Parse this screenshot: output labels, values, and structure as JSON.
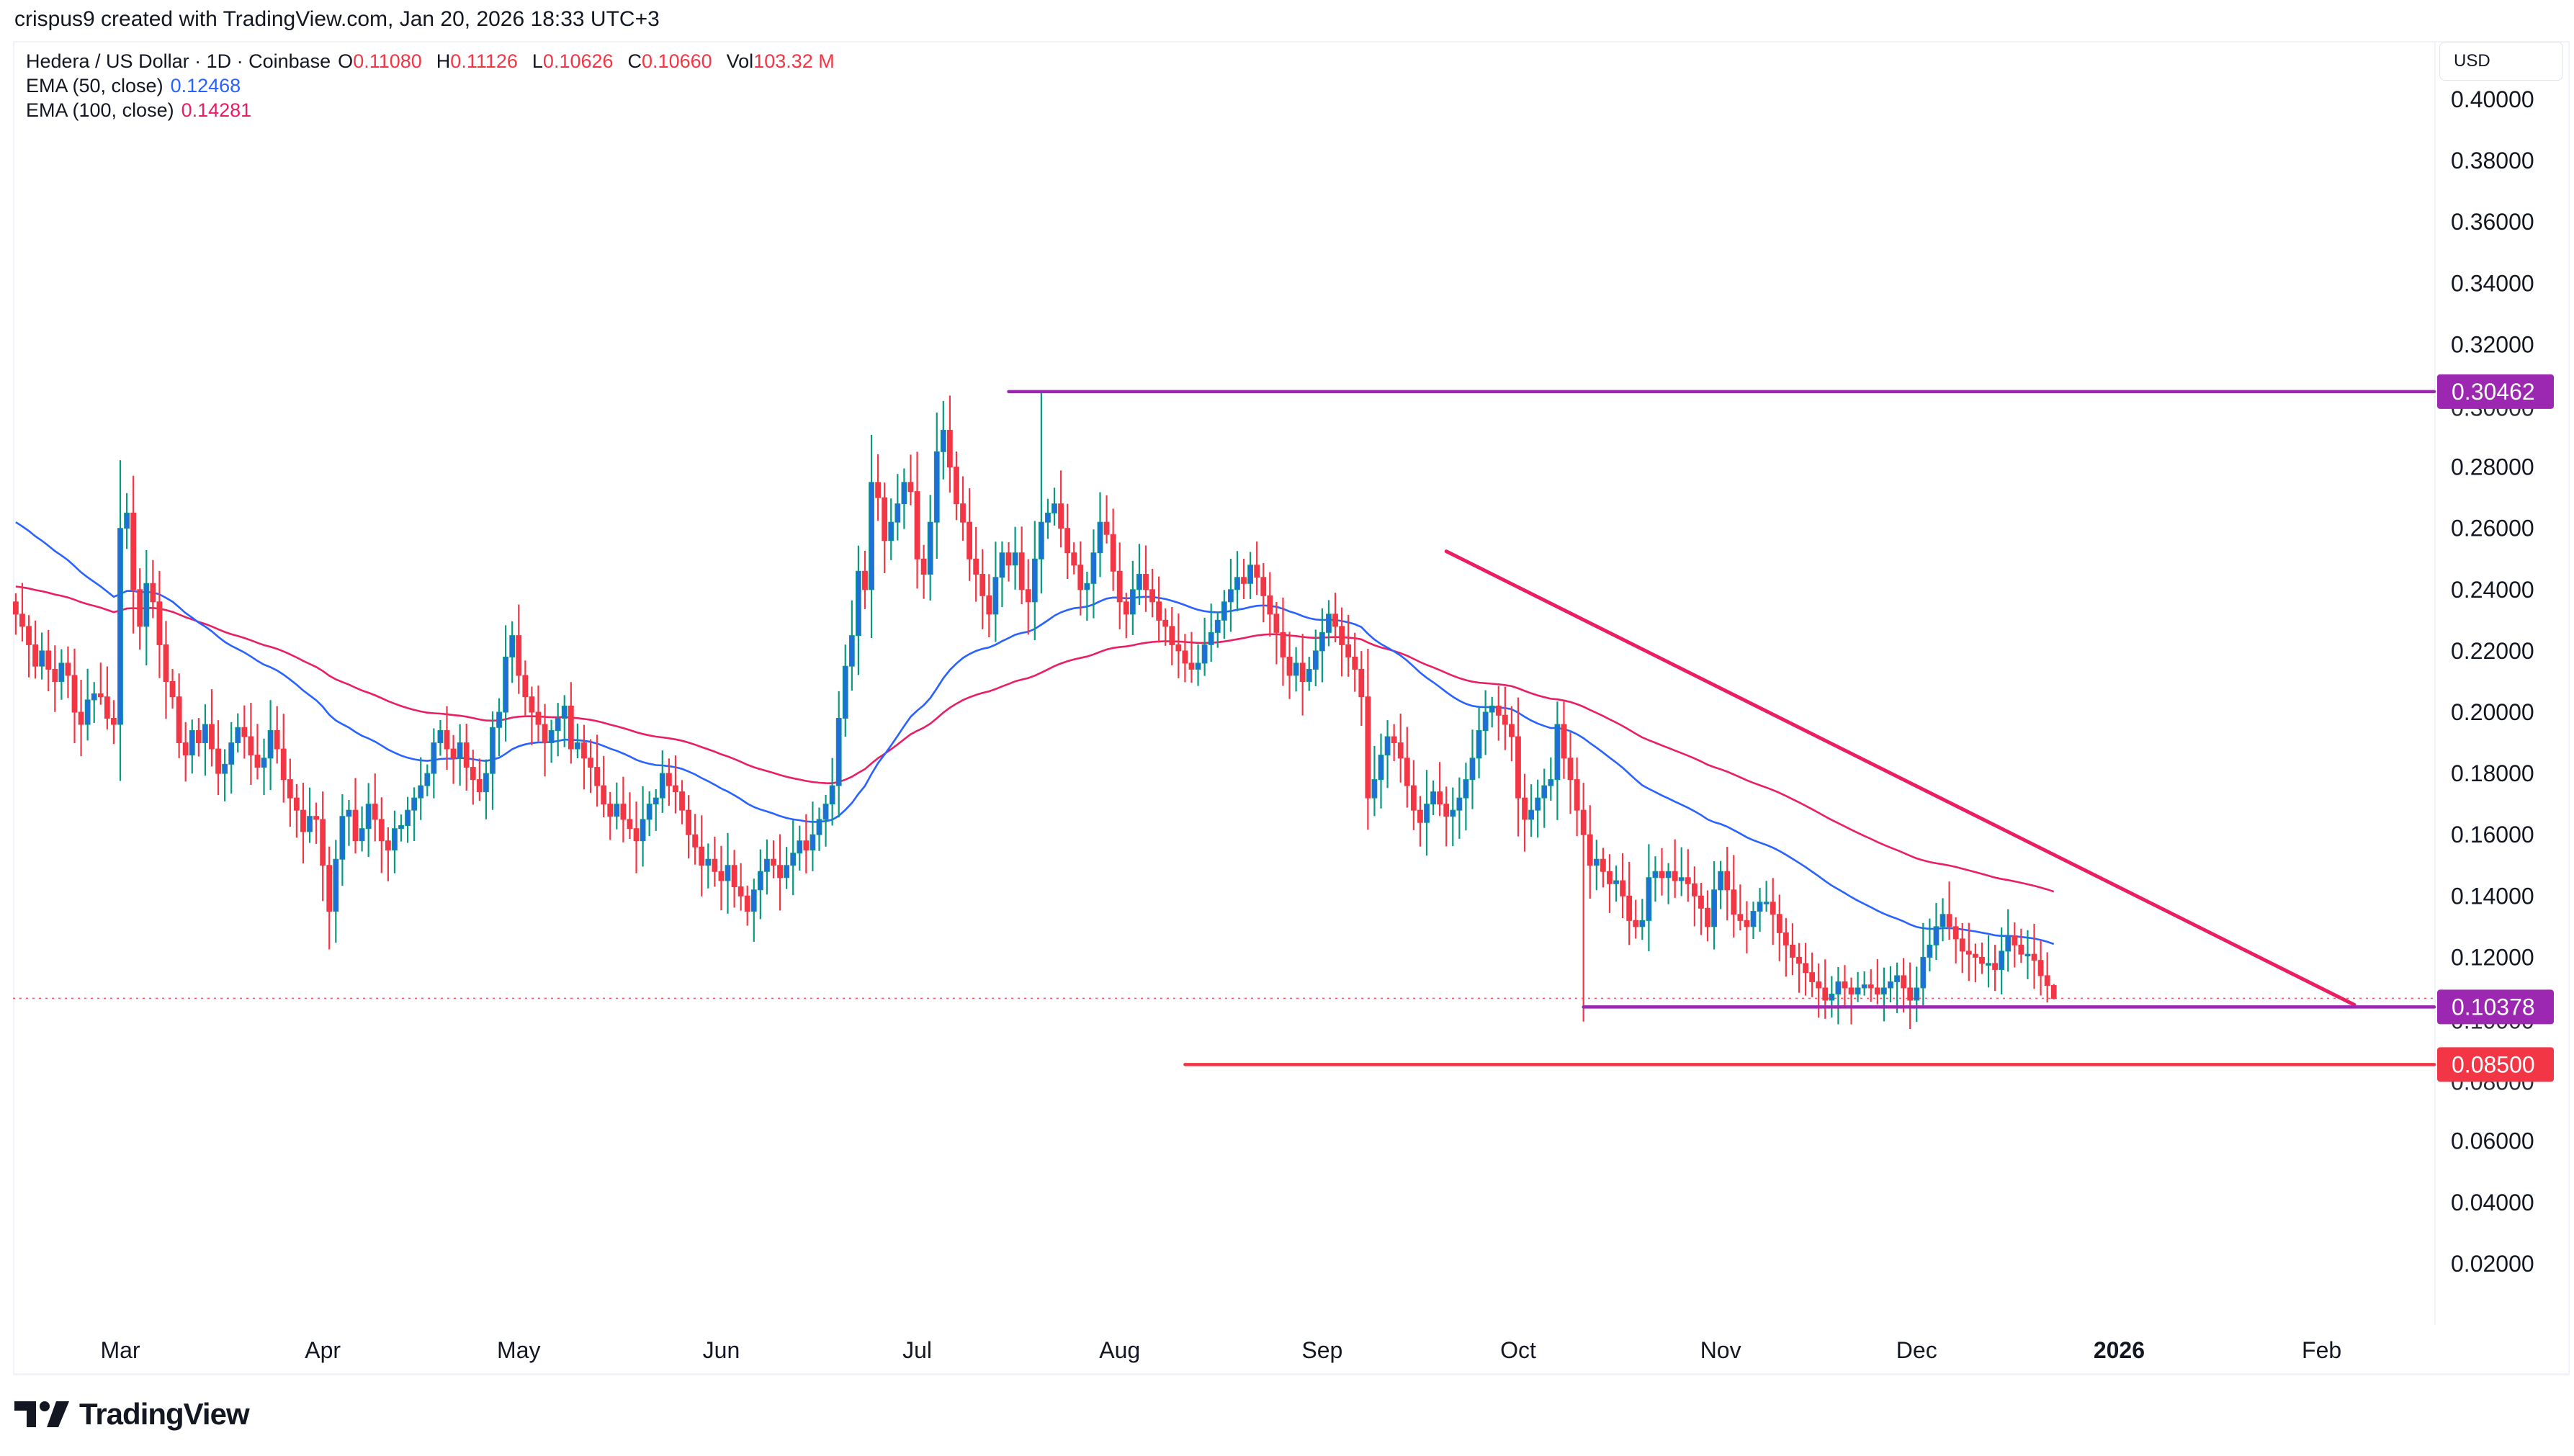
{
  "header": {
    "credit": "crispus9 created with TradingView.com, Jan 20, 2026 18:33 UTC+3"
  },
  "legend": {
    "symbol": "Hedera / US Dollar · 1D · Coinbase",
    "o_label": "O",
    "o": "0.11080",
    "h_label": "H",
    "h": "0.11126",
    "l_label": "L",
    "l": "0.10626",
    "c_label": "C",
    "c": "0.10660",
    "vol_label": "Vol",
    "vol": "103.32 M",
    "ema50_label": "EMA (50, close)",
    "ema50": "0.12468",
    "ema100_label": "EMA (100, close)",
    "ema100": "0.14281"
  },
  "price_axis": {
    "currency": "USD",
    "ticks": [
      "0.40000",
      "0.38000",
      "0.36000",
      "0.34000",
      "0.32000",
      "0.30000",
      "0.28000",
      "0.26000",
      "0.24000",
      "0.22000",
      "0.20000",
      "0.18000",
      "0.16000",
      "0.14000",
      "0.12000",
      "0.10000",
      "0.08000",
      "0.06000",
      "0.04000",
      "0.02000"
    ]
  },
  "time_axis": {
    "labels": [
      {
        "text": "Mar",
        "day": 0,
        "bold": false
      },
      {
        "text": "Apr",
        "day": 31,
        "bold": false
      },
      {
        "text": "May",
        "day": 61,
        "bold": false
      },
      {
        "text": "Jun",
        "day": 92,
        "bold": false
      },
      {
        "text": "Jul",
        "day": 122,
        "bold": false
      },
      {
        "text": "Aug",
        "day": 153,
        "bold": false
      },
      {
        "text": "Sep",
        "day": 184,
        "bold": false
      },
      {
        "text": "Oct",
        "day": 214,
        "bold": false
      },
      {
        "text": "Nov",
        "day": 245,
        "bold": false
      },
      {
        "text": "Dec",
        "day": 275,
        "bold": false
      },
      {
        "text": "2026",
        "day": 306,
        "bold": true
      },
      {
        "text": "Feb",
        "day": 337,
        "bold": false
      }
    ]
  },
  "colors": {
    "up_body": "#1e6fd9",
    "up_wick": "#089981",
    "down": "#f23645",
    "ema50": "#2962ff",
    "ema100": "#e91e63",
    "resistance": "#9c27b0",
    "support": "#9c27b0",
    "target": "#f23645",
    "trendline": "#e91e63",
    "last_price_dotted": "#f23645"
  },
  "brand": {
    "logo_text": "TradingView"
  },
  "chart_data": {
    "type": "candlestick",
    "title": "Hedera / US Dollar · 1D · Coinbase",
    "xlabel": "",
    "ylabel": "USD",
    "ylim": [
      0.0,
      0.41
    ],
    "x_start": "2025-02-13",
    "x_end": "2026-01-20",
    "legend": [
      "EMA (50, close)",
      "EMA (100, close)"
    ],
    "last": {
      "open": 0.1108,
      "high": 0.11126,
      "low": 0.10626,
      "close": 0.1066,
      "volume": "103.32 M"
    },
    "indicators": {
      "ema50_last": 0.12468,
      "ema100_last": 0.14281
    },
    "horizontal_levels": [
      {
        "label": "0.30462",
        "price": 0.30462,
        "color": "#9c27b0",
        "from_day": 136
      },
      {
        "label": "0.10378",
        "price": 0.10378,
        "color": "#9c27b0",
        "from_day": 224
      },
      {
        "label": "0.08500",
        "price": 0.085,
        "color": "#f23645",
        "from_day": 163
      }
    ],
    "trendline": {
      "from": {
        "day": 203,
        "price": 0.2525
      },
      "to": {
        "day": 342,
        "price": 0.1045
      },
      "color": "#e91e63"
    },
    "first_day_offset": -16,
    "closes": [
      0.232,
      0.228,
      0.222,
      0.215,
      0.22,
      0.214,
      0.21,
      0.216,
      0.212,
      0.2,
      0.196,
      0.204,
      0.206,
      0.205,
      0.198,
      0.196,
      0.26,
      0.265,
      0.24,
      0.228,
      0.242,
      0.236,
      0.222,
      0.21,
      0.205,
      0.19,
      0.186,
      0.194,
      0.19,
      0.196,
      0.188,
      0.18,
      0.183,
      0.19,
      0.195,
      0.192,
      0.186,
      0.182,
      0.185,
      0.194,
      0.188,
      0.178,
      0.172,
      0.168,
      0.161,
      0.166,
      0.165,
      0.15,
      0.135,
      0.152,
      0.166,
      0.168,
      0.158,
      0.162,
      0.17,
      0.165,
      0.158,
      0.155,
      0.162,
      0.163,
      0.168,
      0.172,
      0.176,
      0.18,
      0.19,
      0.194,
      0.188,
      0.185,
      0.19,
      0.182,
      0.178,
      0.174,
      0.18,
      0.195,
      0.2,
      0.218,
      0.225,
      0.212,
      0.205,
      0.2,
      0.196,
      0.19,
      0.194,
      0.198,
      0.202,
      0.188,
      0.19,
      0.185,
      0.182,
      0.176,
      0.17,
      0.166,
      0.17,
      0.165,
      0.162,
      0.158,
      0.165,
      0.17,
      0.172,
      0.18,
      0.176,
      0.174,
      0.168,
      0.16,
      0.156,
      0.15,
      0.152,
      0.148,
      0.145,
      0.15,
      0.143,
      0.14,
      0.135,
      0.142,
      0.148,
      0.152,
      0.15,
      0.146,
      0.15,
      0.154,
      0.158,
      0.155,
      0.16,
      0.165,
      0.17,
      0.176,
      0.198,
      0.215,
      0.225,
      0.246,
      0.24,
      0.275,
      0.27,
      0.256,
      0.262,
      0.268,
      0.275,
      0.272,
      0.25,
      0.245,
      0.262,
      0.285,
      0.292,
      0.28,
      0.268,
      0.262,
      0.25,
      0.245,
      0.238,
      0.232,
      0.244,
      0.252,
      0.248,
      0.252,
      0.24,
      0.236,
      0.25,
      0.262,
      0.265,
      0.268,
      0.26,
      0.252,
      0.248,
      0.24,
      0.242,
      0.252,
      0.262,
      0.258,
      0.246,
      0.236,
      0.232,
      0.24,
      0.245,
      0.24,
      0.236,
      0.23,
      0.228,
      0.222,
      0.22,
      0.216,
      0.214,
      0.216,
      0.222,
      0.226,
      0.23,
      0.236,
      0.24,
      0.244,
      0.242,
      0.248,
      0.244,
      0.238,
      0.232,
      0.226,
      0.218,
      0.212,
      0.216,
      0.21,
      0.214,
      0.22,
      0.226,
      0.232,
      0.228,
      0.222,
      0.218,
      0.214,
      0.205,
      0.172,
      0.178,
      0.186,
      0.192,
      0.19,
      0.185,
      0.176,
      0.168,
      0.164,
      0.17,
      0.174,
      0.17,
      0.166,
      0.168,
      0.172,
      0.178,
      0.185,
      0.194,
      0.2,
      0.202,
      0.199,
      0.196,
      0.192,
      0.172,
      0.165,
      0.168,
      0.172,
      0.176,
      0.178,
      0.196,
      0.185,
      0.178,
      0.168,
      0.16,
      0.15,
      0.152,
      0.148,
      0.144,
      0.145,
      0.14,
      0.132,
      0.13,
      0.132,
      0.146,
      0.148,
      0.146,
      0.148,
      0.145,
      0.146,
      0.144,
      0.14,
      0.136,
      0.13,
      0.142,
      0.148,
      0.142,
      0.134,
      0.132,
      0.13,
      0.135,
      0.138,
      0.138,
      0.134,
      0.128,
      0.124,
      0.12,
      0.118,
      0.115,
      0.112,
      0.11,
      0.106,
      0.108,
      0.112,
      0.11,
      0.108,
      0.11,
      0.111,
      0.11,
      0.108,
      0.11,
      0.112,
      0.114,
      0.11,
      0.106,
      0.11,
      0.12,
      0.124,
      0.13,
      0.134,
      0.13,
      0.126,
      0.122,
      0.121,
      0.12,
      0.118,
      0.118,
      0.116,
      0.122,
      0.127,
      0.124,
      0.121,
      0.121,
      0.119,
      0.114,
      0.1108,
      0.1066
    ]
  }
}
